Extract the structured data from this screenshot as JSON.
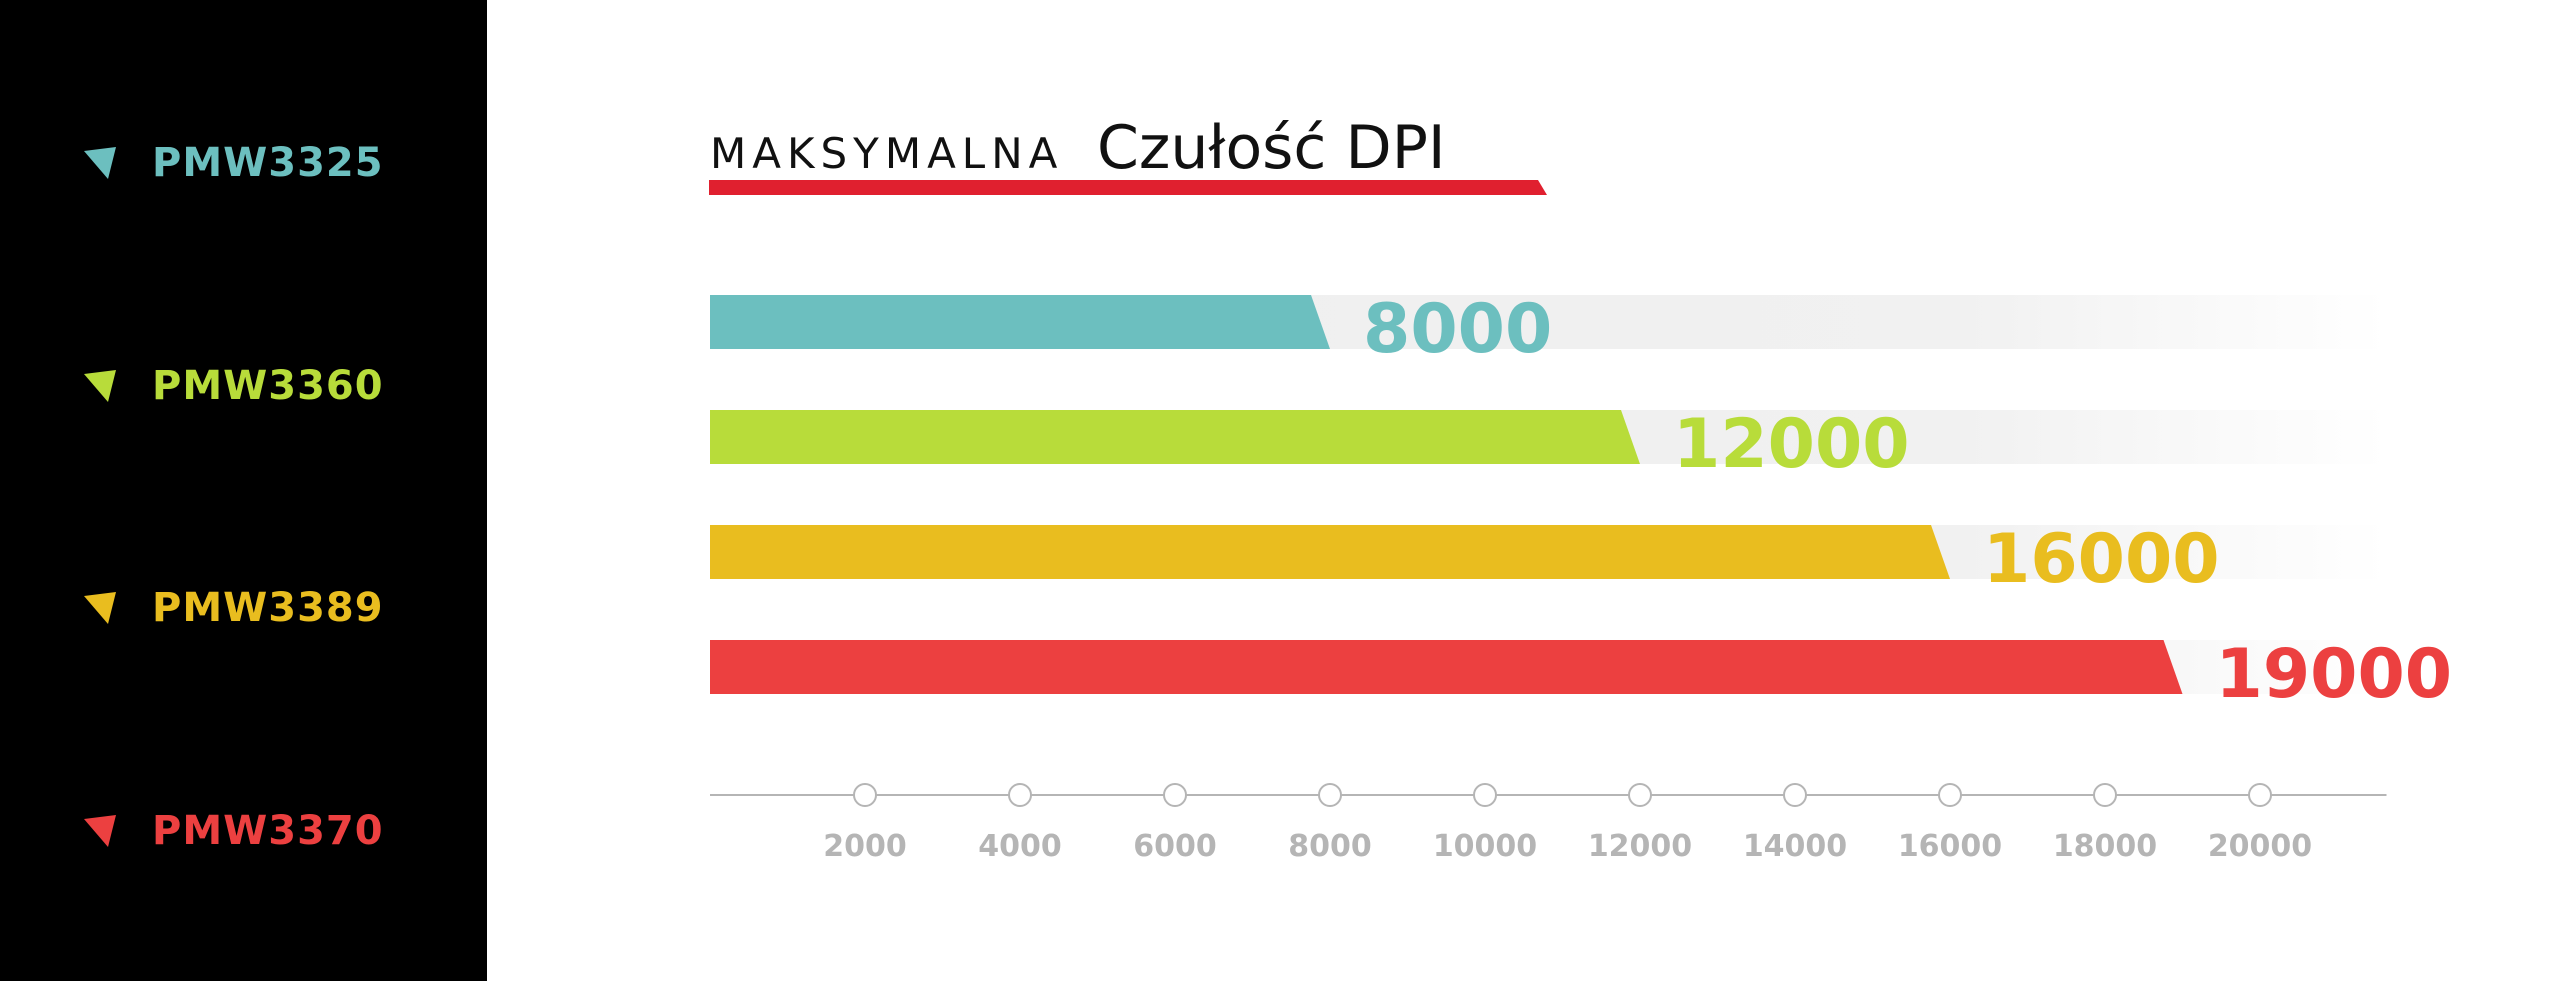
{
  "title": {
    "prefix": "MAKSYMALNA",
    "main": "Czułość DPI",
    "underline_color": "#e0202f"
  },
  "legend": [
    {
      "label": "PMW3325",
      "color": "#6cbfbf",
      "icon": "triangle-marker-icon"
    },
    {
      "label": "PMW3360",
      "color": "#b8dc3a",
      "icon": "triangle-marker-icon"
    },
    {
      "label": "PMW3389",
      "color": "#e9bd1f",
      "icon": "triangle-marker-icon"
    },
    {
      "label": "PMW3370",
      "color": "#ec4040",
      "icon": "triangle-marker-icon"
    }
  ],
  "chart_data": {
    "type": "bar",
    "orientation": "horizontal",
    "title": "MAKSYMALNA Czułość DPI",
    "categories": [
      "PMW3325",
      "PMW3360",
      "PMW3389",
      "PMW3370"
    ],
    "values": [
      8000,
      12000,
      16000,
      19000
    ],
    "value_labels": [
      "8000",
      "12000",
      "16000",
      "19000"
    ],
    "colors": [
      "#6cbfbf",
      "#b8dc3a",
      "#e9bd1f",
      "#ec4040"
    ],
    "xlim": [
      0,
      21000
    ],
    "track_max": 21000,
    "x_ticks": [
      2000,
      4000,
      6000,
      8000,
      10000,
      12000,
      14000,
      16000,
      18000,
      20000
    ],
    "x_tick_labels": [
      "2000",
      "4000",
      "6000",
      "8000",
      "10000",
      "12000",
      "14000",
      "16000",
      "18000",
      "20000"
    ],
    "grid": false,
    "legend": "left-panel"
  }
}
